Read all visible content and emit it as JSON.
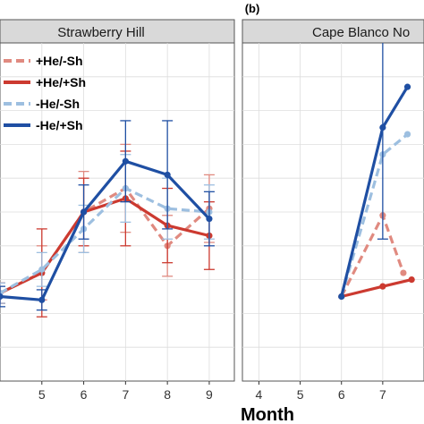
{
  "chart_data": [
    {
      "type": "line",
      "panel_label": "",
      "title": "Strawberry Hill",
      "xlabel": "",
      "ylabel": "",
      "x_ticks": [
        5,
        6,
        7,
        8,
        9
      ],
      "xlim": [
        4,
        9.6
      ],
      "ylim": [
        0,
        10
      ],
      "grid": true,
      "legend": "top-left",
      "series": [
        {
          "name": "+He/-Sh",
          "color": "#e08a80",
          "dash": true,
          "points": [
            {
              "x": 4,
              "y": 2.6,
              "err": 0.3
            },
            {
              "x": 5,
              "y": 3.2,
              "err": 0.8
            },
            {
              "x": 6,
              "y": 5.0,
              "err": 1.2
            },
            {
              "x": 7,
              "y": 5.7,
              "err": 1.3
            },
            {
              "x": 8,
              "y": 4.0,
              "err": 0.9
            },
            {
              "x": 9,
              "y": 5.1,
              "err": 1.0
            }
          ]
        },
        {
          "name": "+He/+Sh",
          "color": "#cc3a30",
          "dash": false,
          "points": [
            {
              "x": 4,
              "y": 2.6,
              "err": 0.3
            },
            {
              "x": 5,
              "y": 3.2,
              "err": 1.3
            },
            {
              "x": 6,
              "y": 5.0,
              "err": 1.0
            },
            {
              "x": 7,
              "y": 5.4,
              "err": 1.4
            },
            {
              "x": 8,
              "y": 4.6,
              "err": 1.1
            },
            {
              "x": 9,
              "y": 4.3,
              "err": 1.0
            }
          ]
        },
        {
          "name": "-He/-Sh",
          "color": "#9dbfe0",
          "dash": true,
          "points": [
            {
              "x": 4,
              "y": 2.6,
              "err": 0.3
            },
            {
              "x": 5,
              "y": 3.3,
              "err": 0.5
            },
            {
              "x": 6,
              "y": 4.5,
              "err": 0.7
            },
            {
              "x": 7,
              "y": 5.7,
              "err": 1.0
            },
            {
              "x": 8,
              "y": 5.1,
              "err": 0.9
            },
            {
              "x": 9,
              "y": 5.0,
              "err": 0.8
            }
          ]
        },
        {
          "name": "-He/+Sh",
          "color": "#1f4fa3",
          "dash": false,
          "points": [
            {
              "x": 4,
              "y": 2.5,
              "err": 0.3
            },
            {
              "x": 5,
              "y": 2.4,
              "err": 0.3
            },
            {
              "x": 6,
              "y": 5.0,
              "err": 0.8
            },
            {
              "x": 7,
              "y": 6.5,
              "err": 1.2
            },
            {
              "x": 8,
              "y": 6.1,
              "err": 1.6
            },
            {
              "x": 9,
              "y": 4.8,
              "err": 0.8
            }
          ]
        }
      ]
    },
    {
      "type": "line",
      "panel_label": "(b)",
      "title": "Cape Blanco No",
      "xlabel": "Month",
      "ylabel": "",
      "x_ticks": [
        4,
        5,
        6,
        7
      ],
      "xlim": [
        3.6,
        8.0
      ],
      "ylim": [
        0,
        10
      ],
      "grid": true,
      "legend": "none",
      "series": [
        {
          "name": "+He/-Sh",
          "color": "#e08a80",
          "dash": true,
          "points": [
            {
              "x": 6,
              "y": 2.5,
              "err": 0
            },
            {
              "x": 7,
              "y": 4.9,
              "err": 0
            },
            {
              "x": 7.5,
              "y": 3.2,
              "err": 0
            }
          ]
        },
        {
          "name": "+He/+Sh",
          "color": "#cc3a30",
          "dash": false,
          "points": [
            {
              "x": 6,
              "y": 2.5,
              "err": 0
            },
            {
              "x": 7,
              "y": 2.8,
              "err": 0
            },
            {
              "x": 7.7,
              "y": 3.0,
              "err": 0
            }
          ]
        },
        {
          "name": "-He/-Sh",
          "color": "#9dbfe0",
          "dash": true,
          "points": [
            {
              "x": 6,
              "y": 2.5,
              "err": 0
            },
            {
              "x": 7,
              "y": 6.7,
              "err": 0
            },
            {
              "x": 7.6,
              "y": 7.3,
              "err": 0
            }
          ]
        },
        {
          "name": "-He/+Sh",
          "color": "#1f4fa3",
          "dash": false,
          "points": [
            {
              "x": 6,
              "y": 2.5,
              "err": 0
            },
            {
              "x": 7,
              "y": 7.5,
              "err": 3.3
            },
            {
              "x": 7.6,
              "y": 8.7,
              "err": 0
            }
          ]
        }
      ]
    }
  ]
}
